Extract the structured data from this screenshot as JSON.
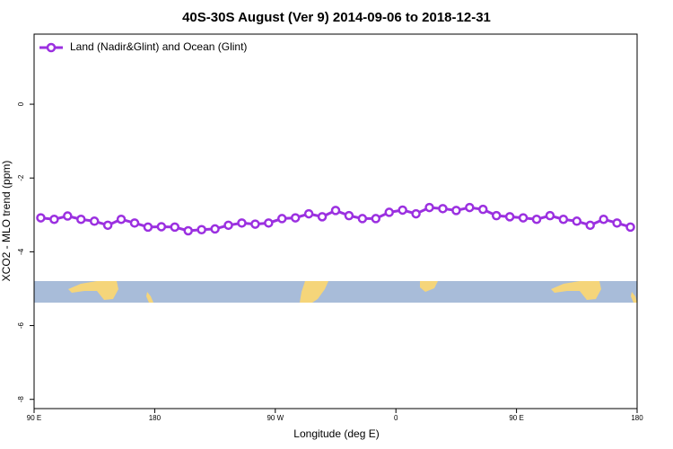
{
  "chart_data": {
    "type": "line",
    "title": "40S-30S August (Ver 9)   2014-09-06 to 2018-12-31",
    "x_label": "Longitude (deg E)",
    "y_label": "XCO2 - MLO trend (ppm)",
    "x": [
      95,
      105,
      115,
      125,
      135,
      145,
      155,
      165,
      175,
      185,
      195,
      205,
      215,
      225,
      235,
      245,
      255,
      265,
      275,
      285,
      295,
      305,
      315,
      325,
      335,
      345,
      355,
      365,
      375,
      385,
      395,
      405,
      415,
      425,
      435,
      445,
      455,
      465,
      475,
      485,
      495,
      505,
      515,
      525,
      535
    ],
    "series": [
      {
        "name": "Land (Nadir&Glint) and Ocean (Glint)",
        "color": "#9b30e0",
        "values": [
          -3.08,
          -3.12,
          -3.03,
          -3.12,
          -3.17,
          -3.28,
          -3.12,
          -3.22,
          -3.33,
          -3.32,
          -3.33,
          -3.43,
          -3.4,
          -3.38,
          -3.28,
          -3.22,
          -3.25,
          -3.22,
          -3.1,
          -3.08,
          -2.97,
          -3.05,
          -2.88,
          -3.02,
          -3.1,
          -3.1,
          -2.93,
          -2.87,
          -2.97,
          -2.8,
          -2.83,
          -2.88,
          -2.8,
          -2.85,
          -3.02,
          -3.05,
          -3.08,
          -3.12,
          -3.02,
          -3.12,
          -3.17,
          -3.28,
          -3.12,
          -3.22,
          -3.33
        ]
      }
    ],
    "xlim": [
      90,
      540
    ],
    "xticks": [
      {
        "value": 90,
        "label": "90 E"
      },
      {
        "value": 180,
        "label": "180"
      },
      {
        "value": 270,
        "label": "90 W"
      },
      {
        "value": 360,
        "label": "0"
      },
      {
        "value": 450,
        "label": "90 E"
      },
      {
        "value": 540,
        "label": "180"
      }
    ],
    "ylim": [
      -8.25,
      1.9
    ],
    "yticks": [
      -8,
      -6,
      -4,
      -2,
      0
    ],
    "legend": "top-left",
    "grid": false
  }
}
